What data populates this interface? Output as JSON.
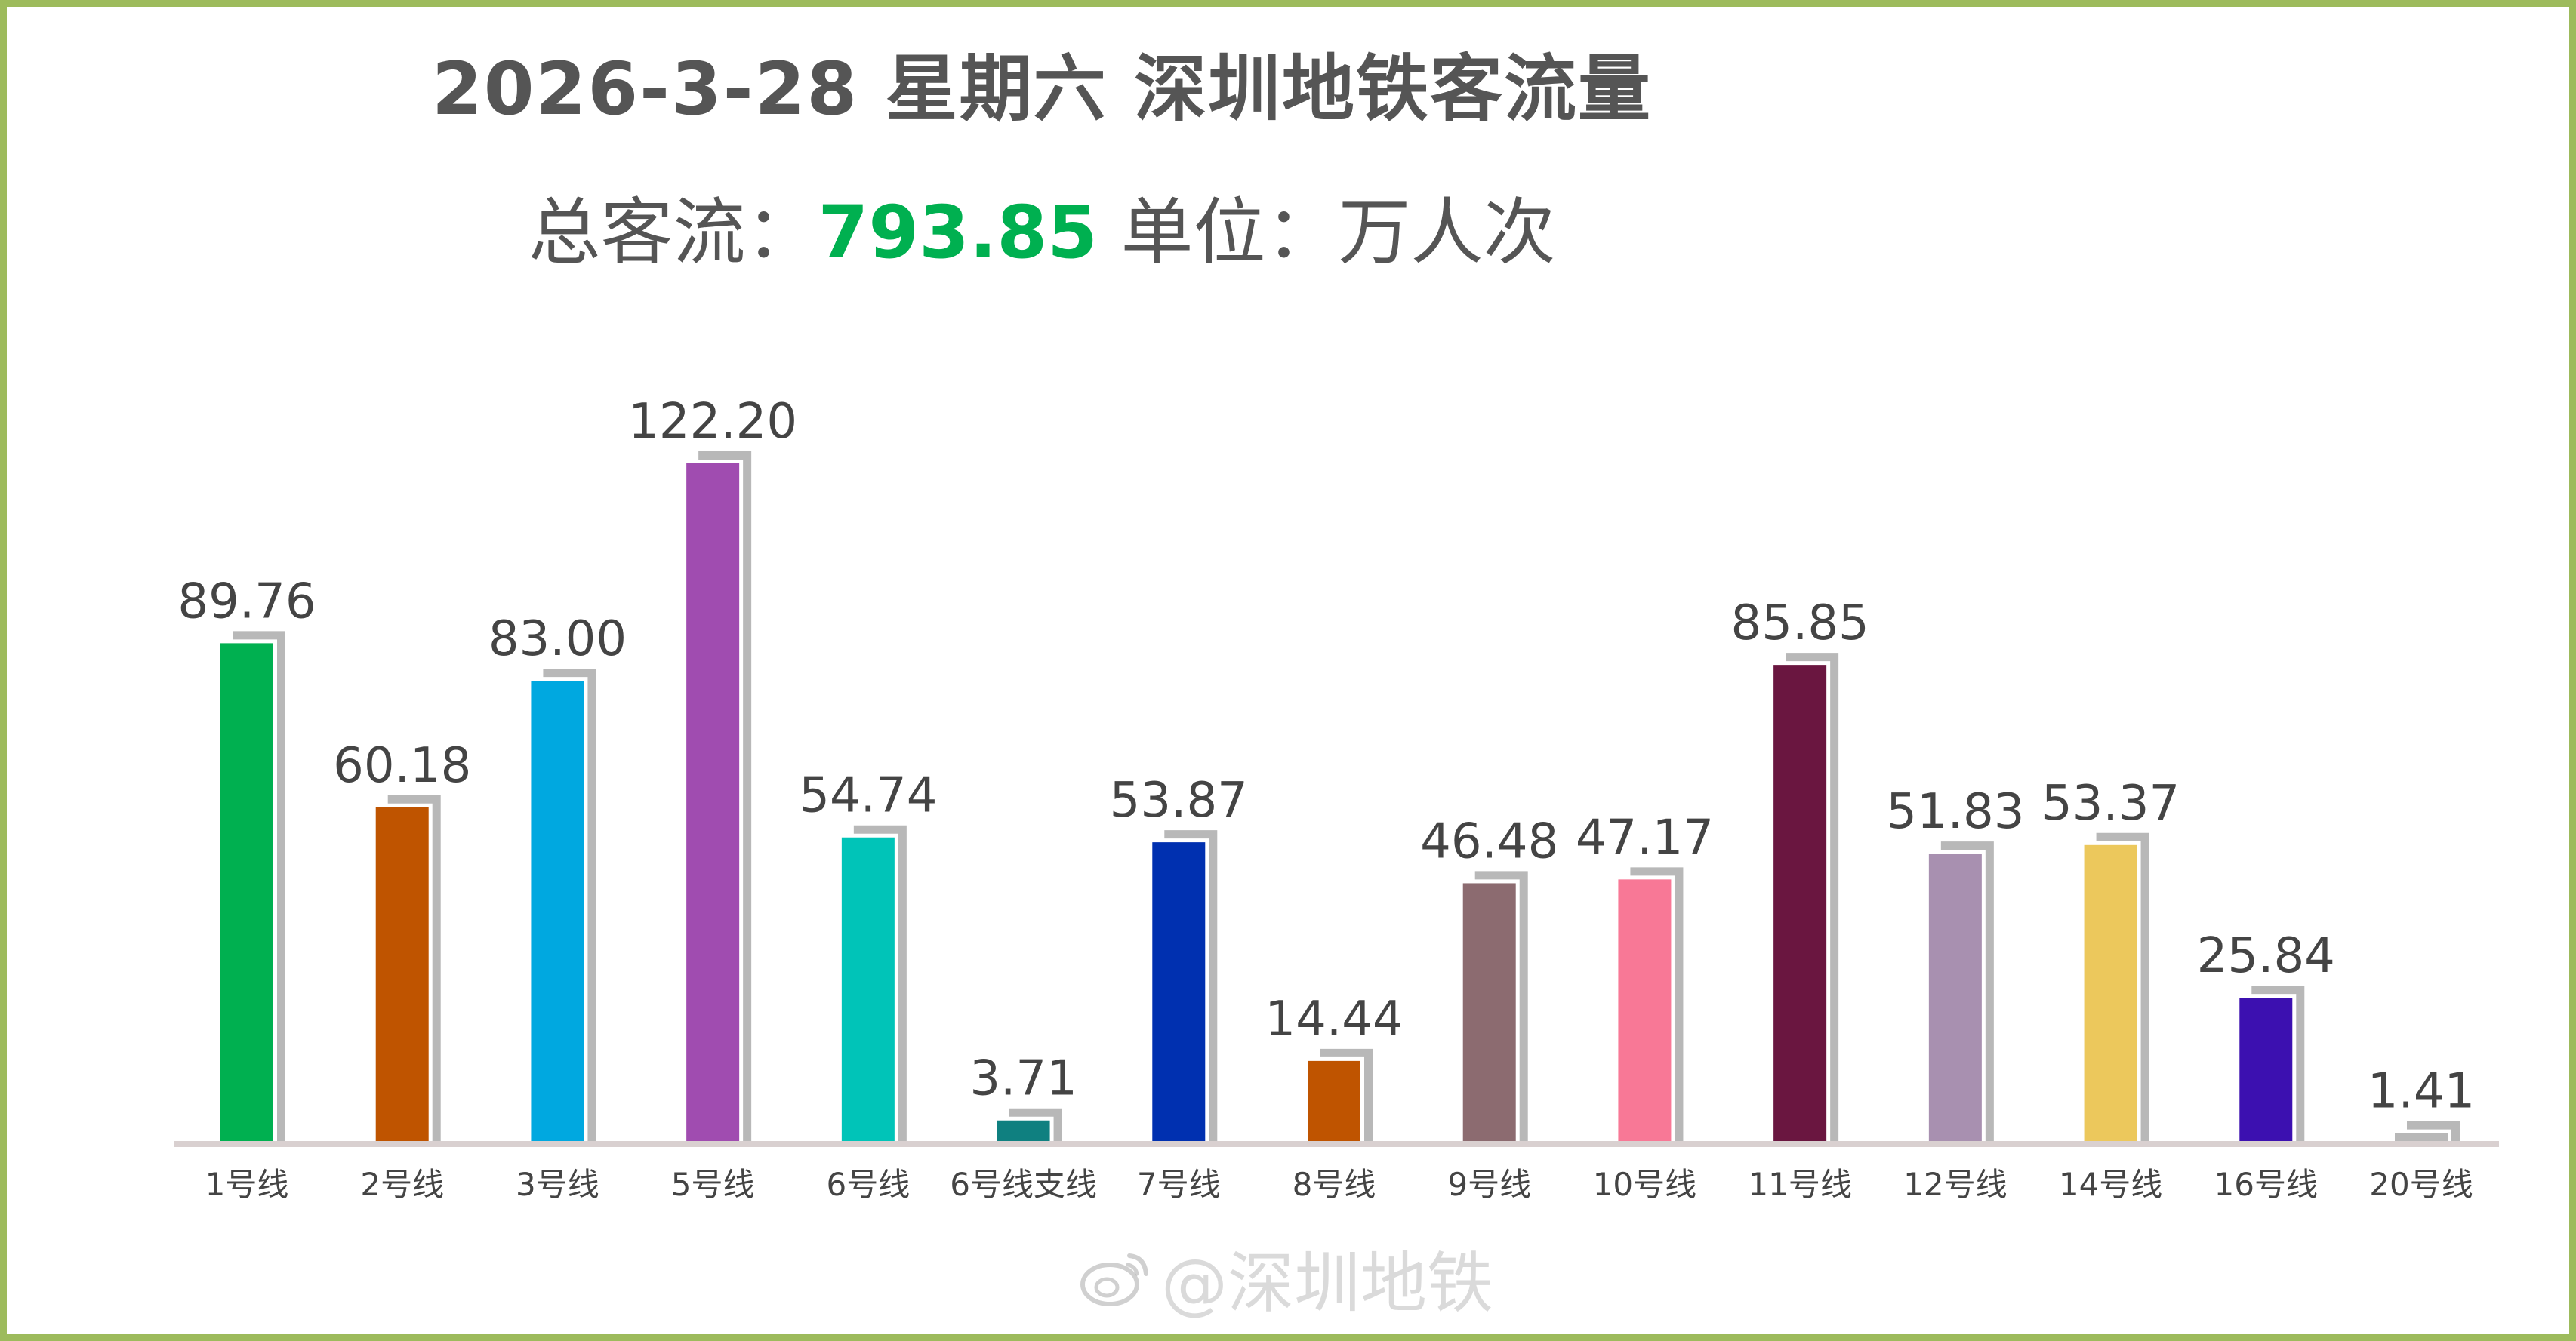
{
  "header": {
    "title": "2026-3-28 星期六  深圳地铁客流量",
    "subtitle_prefix": "总客流：",
    "total": "793.85",
    "subtitle_suffix": "单位：万人次"
  },
  "watermark": {
    "text": "@深圳地铁",
    "icon": "weibo-icon"
  },
  "colors": {
    "frame": "#9dbb5c",
    "total": "#00b050",
    "shadow": "#b8b8b8",
    "axis": "#d9d0d0"
  },
  "chart_data": {
    "type": "bar",
    "title": "2026-3-28 星期六  深圳地铁客流量",
    "ylabel": "万人次",
    "ylim": [
      0,
      122.2
    ],
    "grid": false,
    "categories": [
      "1号线",
      "2号线",
      "3号线",
      "5号线",
      "6号线",
      "6号线支线",
      "7号线",
      "8号线",
      "9号线",
      "10号线",
      "11号线",
      "12号线",
      "14号线",
      "16号线",
      "20号线"
    ],
    "values": [
      89.76,
      60.18,
      83.0,
      122.2,
      54.74,
      3.71,
      53.87,
      14.44,
      46.48,
      47.17,
      85.85,
      51.83,
      53.37,
      25.84,
      1.41
    ],
    "labels": [
      "89.76",
      "60.18",
      "83.00",
      "122.20",
      "54.74",
      "3.71",
      "53.87",
      "14.44",
      "46.48",
      "47.17",
      "85.85",
      "51.83",
      "53.37",
      "25.84",
      "1.41"
    ],
    "bar_colors": [
      "#00b050",
      "#bf5400",
      "#00a8e0",
      "#a04cb0",
      "#00c4b8",
      "#0f8080",
      "#0030b0",
      "#bf5400",
      "#8c6b70",
      "#f87896",
      "#6a1640",
      "#a890b0",
      "#ecc85c",
      "#3c10b0",
      "#b8b8b8"
    ]
  }
}
